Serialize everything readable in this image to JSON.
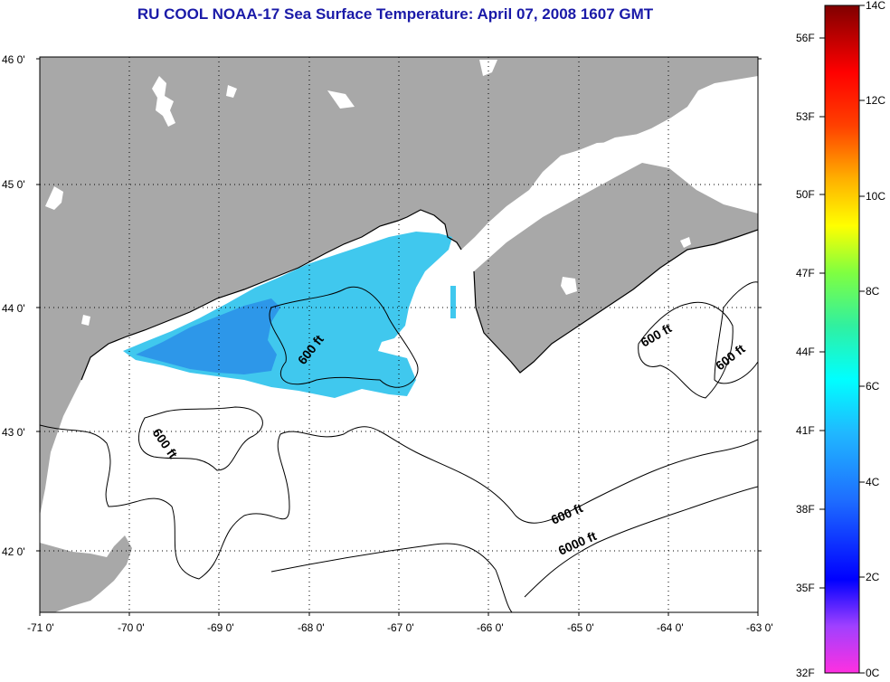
{
  "title": "RU COOL  NOAA-17  Sea Surface Temperature:  April 07, 2008 1607 GMT",
  "title_color": "#1a1aa8",
  "map": {
    "lat_labels": [
      "46 0'",
      "45 0'",
      "44 0'",
      "43 0'",
      "42 0'"
    ],
    "lon_labels": [
      "-71 0'",
      "-70 0'",
      "-69 0'",
      "-68 0'",
      "-67 0'",
      "-66 0'",
      "-65 0'",
      "-64 0'",
      "-63 0'"
    ],
    "contour_labels": [
      "600 ft",
      "600 ft",
      "600 ft",
      "600 ft",
      "600 ft",
      "6000 ft"
    ],
    "land_color": "#a8a8a8",
    "water_color": "#ffffff",
    "sst_color_main": "#40c8ee",
    "sst_color_cold": "#2a8ee8"
  },
  "colorbar": {
    "fahrenheit_labels": [
      "56F",
      "53F",
      "50F",
      "47F",
      "44F",
      "41F",
      "38F",
      "35F",
      "32F"
    ],
    "celsius_labels": [
      "14C",
      "12C",
      "10C",
      "8C",
      "6C",
      "4C",
      "2C",
      "0C"
    ]
  }
}
